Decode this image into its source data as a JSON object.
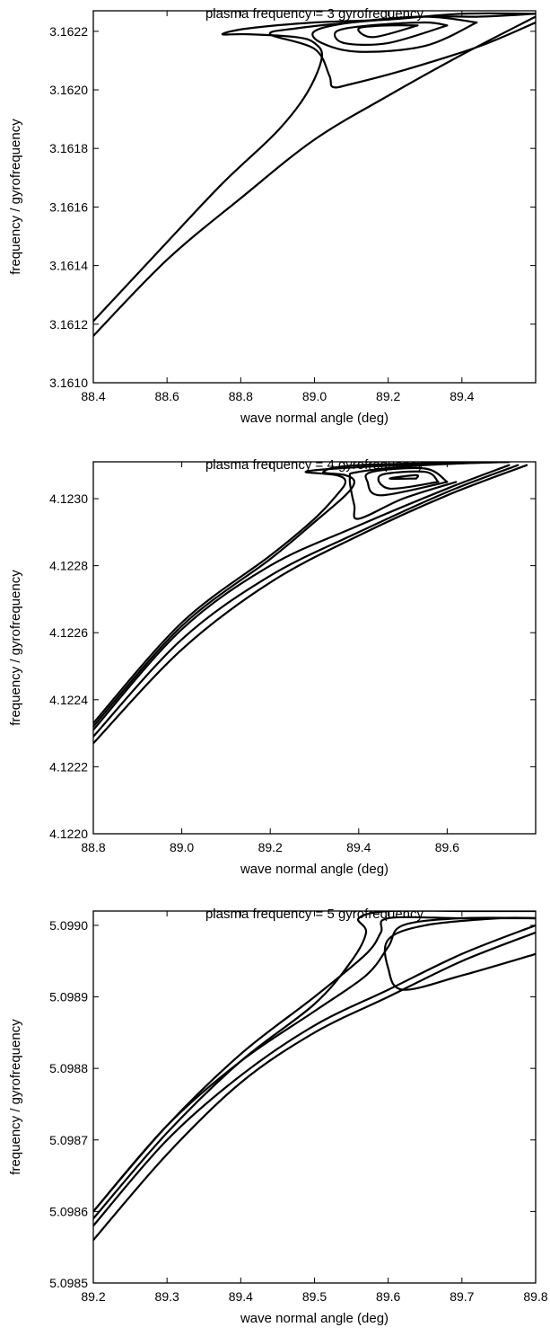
{
  "chart_data": [
    {
      "type": "line",
      "title": "plasma frequency = 3 gyrofrequency",
      "xlabel": "wave normal angle (deg)",
      "ylabel": "frequency / gyrofrequency",
      "xlim": [
        88.4,
        89.6
      ],
      "ylim": [
        3.161,
        3.16227
      ],
      "xticks": [
        88.4,
        88.6,
        88.8,
        89.0,
        89.2,
        89.4
      ],
      "xtick_labels": [
        "88.4",
        "88.6",
        "88.8",
        "89.0",
        "89.2",
        "89.4"
      ],
      "yticks": [
        3.161,
        3.1612,
        3.1614,
        3.1616,
        3.1618,
        3.162,
        3.1622
      ],
      "ytick_labels": [
        "3.1610",
        "3.1612",
        "3.1614",
        "3.1616",
        "3.1618",
        "3.1620",
        "3.1622"
      ],
      "grid": false,
      "series": [
        {
          "x": [
            88.4,
            88.6,
            88.8,
            89.0,
            89.2,
            89.4,
            89.6
          ],
          "y": [
            3.16116,
            3.16142,
            3.16163,
            3.16183,
            3.16198,
            3.16212,
            3.16225
          ]
        },
        {
          "x": [
            88.4,
            88.6,
            88.75,
            88.9,
            88.98,
            89.02,
            89.0,
            88.95,
            88.82,
            88.75,
            88.82,
            89.0,
            89.2,
            89.4,
            89.6
          ],
          "y": [
            3.16121,
            3.16148,
            3.16168,
            3.16186,
            3.16199,
            3.16211,
            3.16216,
            3.16218,
            3.16219,
            3.16219,
            3.16221,
            3.16223,
            3.16224,
            3.16226,
            3.16226
          ]
        },
        {
          "x": [
            89.6,
            89.45,
            89.25,
            89.1,
            89.05,
            89.04,
            89.0,
            88.88,
            88.95,
            89.1,
            89.3,
            89.45,
            89.6
          ],
          "y": [
            3.16223,
            3.16215,
            3.16207,
            3.16202,
            3.16201,
            3.16205,
            3.16214,
            3.16219,
            3.16221,
            3.16223,
            3.16225,
            3.16225,
            3.16226
          ]
        },
        {
          "x": [
            89.44,
            89.3,
            89.12,
            89.02,
            89.0,
            89.1,
            89.3,
            89.44
          ],
          "y": [
            3.16223,
            3.16215,
            3.16213,
            3.16216,
            3.1622,
            3.16223,
            3.16225,
            3.16223
          ]
        },
        {
          "x": [
            89.36,
            89.2,
            89.08,
            89.06,
            89.15,
            89.3,
            89.36
          ],
          "y": [
            3.16222,
            3.16216,
            3.16216,
            3.1622,
            3.16222,
            3.16223,
            3.16222
          ]
        },
        {
          "x": [
            89.28,
            89.16,
            89.12,
            89.2,
            89.28
          ],
          "y": [
            3.16222,
            3.16218,
            3.16221,
            3.16222,
            3.16222
          ]
        }
      ]
    },
    {
      "type": "line",
      "title": "plasma frequency = 4 gyrofrequency",
      "xlabel": "wave normal angle (deg)",
      "ylabel": "frequency / gyrofrequency",
      "xlim": [
        88.8,
        89.8
      ],
      "ylim": [
        4.122,
        4.12311
      ],
      "xticks": [
        88.8,
        89.0,
        89.2,
        89.4,
        89.6
      ],
      "xtick_labels": [
        "88.8",
        "89.0",
        "89.2",
        "89.4",
        "89.6"
      ],
      "yticks": [
        4.122,
        4.1222,
        4.1224,
        4.1226,
        4.1228,
        4.123
      ],
      "ytick_labels": [
        "4.1220",
        "4.1222",
        "4.1224",
        "4.1226",
        "4.1228",
        "4.1230"
      ],
      "grid": false,
      "series": [
        {
          "x": [
            88.8,
            89.0,
            89.2,
            89.4,
            89.6,
            89.78
          ],
          "y": [
            4.12227,
            4.12255,
            4.12275,
            4.12289,
            4.12301,
            4.1231
          ]
        },
        {
          "x": [
            88.8,
            89.0,
            89.2,
            89.4,
            89.6,
            89.76
          ],
          "y": [
            4.12229,
            4.12258,
            4.12277,
            4.1229,
            4.12302,
            4.1231
          ]
        },
        {
          "x": [
            88.8,
            89.0,
            89.2,
            89.4,
            89.6,
            89.74
          ],
          "y": [
            4.12231,
            4.12261,
            4.1228,
            4.12292,
            4.12303,
            4.1231
          ]
        },
        {
          "x": [
            88.8,
            89.0,
            89.2,
            89.3,
            89.35,
            89.37,
            89.35,
            89.28,
            89.35,
            89.5,
            89.74
          ],
          "y": [
            4.12233,
            4.12263,
            4.12283,
            4.12294,
            4.12301,
            4.12305,
            4.12307,
            4.12308,
            4.12309,
            4.1231,
            4.12311
          ]
        },
        {
          "x": [
            88.8,
            89.0,
            89.2,
            89.3,
            89.37,
            89.39,
            89.37,
            89.32,
            89.4,
            89.74
          ],
          "y": [
            4.12232,
            4.12262,
            4.12282,
            4.12293,
            4.12301,
            4.12305,
            4.12307,
            4.12308,
            4.1231,
            4.12311
          ]
        },
        {
          "x": [
            89.62,
            89.5,
            89.4,
            89.39,
            89.38,
            89.4,
            89.55,
            89.74
          ],
          "y": [
            4.12305,
            4.123,
            4.12294,
            4.12298,
            4.12306,
            4.12308,
            4.1231,
            4.12311
          ]
        },
        {
          "x": [
            89.6,
            89.45,
            89.42,
            89.43,
            89.55,
            89.6
          ],
          "y": [
            4.12305,
            4.12301,
            4.12305,
            4.12308,
            4.12309,
            4.12305
          ]
        },
        {
          "x": [
            89.58,
            89.47,
            89.45,
            89.55,
            89.58
          ],
          "y": [
            4.12305,
            4.12303,
            4.12307,
            4.12308,
            4.12305
          ]
        },
        {
          "x": [
            89.53,
            89.47,
            89.53,
            89.53
          ],
          "y": [
            4.12306,
            4.12306,
            4.12307,
            4.12306
          ]
        }
      ]
    },
    {
      "type": "line",
      "title": "plasma frequency = 5 gyrofrequency",
      "xlabel": "wave normal angle (deg)",
      "ylabel": "frequency / gyrofrequency",
      "xlim": [
        89.2,
        89.8
      ],
      "ylim": [
        5.0985,
        5.09902
      ],
      "xticks": [
        89.2,
        89.3,
        89.4,
        89.5,
        89.6,
        89.7,
        89.8
      ],
      "xtick_labels": [
        "89.2",
        "89.3",
        "89.4",
        "89.5",
        "89.6",
        "89.7",
        "89.8"
      ],
      "yticks": [
        5.0985,
        5.0986,
        5.0987,
        5.0988,
        5.0989,
        5.099
      ],
      "ytick_labels": [
        "5.0985",
        "5.0986",
        "5.0987",
        "5.0988",
        "5.0989",
        "5.0990"
      ],
      "grid": false,
      "series": [
        {
          "x": [
            89.2,
            89.3,
            89.4,
            89.5,
            89.6,
            89.7,
            89.8
          ],
          "y": [
            5.09856,
            5.09868,
            5.09878,
            5.09885,
            5.0989,
            5.09895,
            5.09899
          ]
        },
        {
          "x": [
            89.2,
            89.3,
            89.4,
            89.5,
            89.6,
            89.7,
            89.8
          ],
          "y": [
            5.09858,
            5.0987,
            5.09879,
            5.09886,
            5.09891,
            5.09896,
            5.099
          ]
        },
        {
          "x": [
            89.2,
            89.3,
            89.4,
            89.5,
            89.55,
            89.57,
            89.56,
            89.6,
            89.7,
            89.8
          ],
          "y": [
            5.09859,
            5.09871,
            5.09881,
            5.09889,
            5.09895,
            5.09899,
            5.09901,
            5.09902,
            5.09902,
            5.09902
          ]
        },
        {
          "x": [
            89.2,
            89.3,
            89.4,
            89.5,
            89.57,
            89.59,
            89.6,
            89.7,
            89.8
          ],
          "y": [
            5.0986,
            5.09872,
            5.09882,
            5.0989,
            5.09896,
            5.09899,
            5.09901,
            5.09901,
            5.09901
          ]
        },
        {
          "x": [
            89.2,
            89.3,
            89.4,
            89.5,
            89.57,
            89.6,
            89.62,
            89.7,
            89.8
          ],
          "y": [
            5.0986,
            5.09872,
            5.09881,
            5.09888,
            5.09893,
            5.09897,
            5.099,
            5.09901,
            5.09901
          ]
        },
        {
          "x": [
            89.8,
            89.7,
            89.62,
            89.6,
            89.6,
            89.65,
            89.75,
            89.8
          ],
          "y": [
            5.09896,
            5.09893,
            5.09891,
            5.09894,
            5.09898,
            5.099,
            5.09901,
            5.09901
          ]
        }
      ]
    }
  ]
}
